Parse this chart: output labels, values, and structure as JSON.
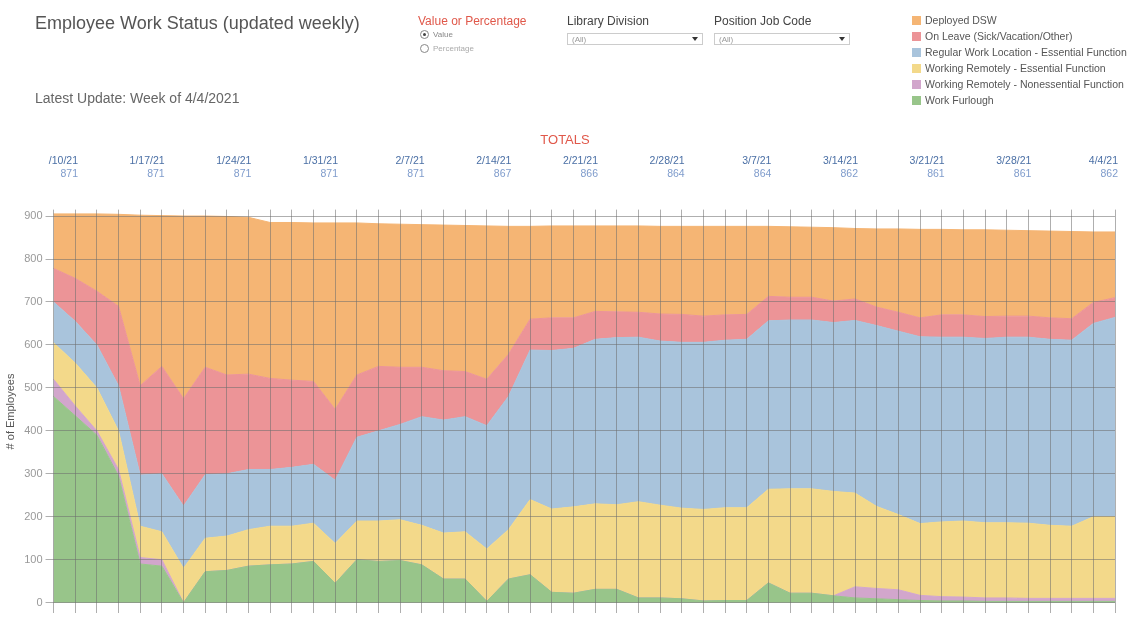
{
  "chart_data": {
    "type": "area",
    "title": "Employee Work Status (updated weekly)",
    "subtitle": "Latest Update: Week of 4/4/2021",
    "ylabel": "# of Employees",
    "stacked": true,
    "legend": "top right",
    "grid": true,
    "tick_labels": "y",
    "ylim": [
      -25,
      915
    ],
    "yticks": [
      0,
      100,
      200,
      300,
      400,
      500,
      600,
      700,
      800,
      900
    ],
    "annotations": [
      "Value or Percentage",
      "Value",
      "Percentage",
      "Library Division",
      "(All)",
      "Position Job Code",
      "(All)",
      "TOTALS",
      "/10/21",
      "871",
      "1/17/21",
      "871",
      "1/24/21",
      "871",
      "1/31/21",
      "871",
      "2/7/21",
      "871",
      "2/14/21",
      "867",
      "2/21/21",
      "866",
      "2/28/21",
      "864",
      "3/7/21",
      "864",
      "3/14/21",
      "862",
      "3/21/21",
      "861",
      "3/28/21",
      "861",
      "4/4/21",
      "862"
    ],
    "categories": [
      null,
      null,
      null,
      null,
      null,
      null,
      null,
      null,
      null,
      null,
      null,
      null,
      null,
      null,
      null,
      null,
      null,
      null,
      null,
      null,
      null,
      null,
      null,
      null,
      null,
      null,
      null,
      null,
      null,
      null,
      null,
      null,
      null,
      null,
      null,
      null,
      null,
      null,
      null,
      null,
      null,
      null,
      null,
      null,
      null,
      null,
      null,
      null,
      null,
      null
    ],
    "series": [
      {
        "name": "Work Furlough",
        "color": "#98c58a",
        "values": [
          480,
          435,
          390,
          295,
          90,
          85,
          0,
          72,
          75,
          85,
          88,
          90,
          96,
          45,
          100,
          96,
          98,
          88,
          55,
          55,
          3,
          55,
          65,
          24,
          22,
          31,
          31,
          11,
          11,
          9,
          4,
          5,
          5,
          46,
          22,
          22,
          16,
          11,
          9,
          7,
          5,
          4,
          4,
          3,
          3,
          3,
          3,
          3,
          3,
          3
        ]
      },
      {
        "name": "Working Remotely - Nonessential Function",
        "color": "#d2a6cc",
        "values": [
          40,
          23,
          10,
          15,
          15,
          15,
          0,
          0,
          0,
          0,
          0,
          0,
          0,
          0,
          0,
          0,
          0,
          0,
          0,
          0,
          0,
          0,
          0,
          0,
          0,
          0,
          0,
          0,
          0,
          0,
          0,
          0,
          0,
          0,
          0,
          0,
          0,
          26,
          24,
          23,
          12,
          10,
          9,
          8,
          8,
          7,
          7,
          7,
          7,
          7
        ]
      },
      {
        "name": "Working Remotely - Essential Function",
        "color": "#f3d98a",
        "values": [
          85,
          100,
          100,
          90,
          73,
          65,
          80,
          78,
          80,
          85,
          90,
          88,
          89,
          93,
          90,
          94,
          95,
          92,
          107,
          110,
          122,
          115,
          175,
          194,
          201,
          199,
          197,
          224,
          216,
          211,
          213,
          216,
          216,
          218,
          243,
          243,
          243,
          218,
          191,
          175,
          167,
          174,
          177,
          175,
          175,
          175,
          170,
          168,
          190,
          190
        ]
      },
      {
        "name": "Regular Work Location - Essential Function",
        "color": "#a9c4dc",
        "values": [
          95,
          97,
          100,
          105,
          119,
          135,
          145,
          148,
          145,
          140,
          132,
          137,
          137,
          147,
          195,
          210,
          222,
          253,
          263,
          268,
          287,
          310,
          348,
          369,
          369,
          383,
          389,
          383,
          382,
          386,
          389,
          390,
          392,
          392,
          393,
          393,
          393,
          402,
          421,
          427,
          435,
          430,
          428,
          429,
          432,
          433,
          433,
          433,
          450,
          464
        ]
      },
      {
        "name": "On Leave (Sick/Vacation/Other)",
        "color": "#ec9497",
        "values": [
          78,
          100,
          125,
          185,
          208,
          250,
          250,
          250,
          230,
          222,
          212,
          203,
          193,
          165,
          145,
          150,
          133,
          115,
          115,
          105,
          108,
          98,
          72,
          76,
          71,
          65,
          60,
          58,
          63,
          65,
          61,
          59,
          58,
          57,
          53,
          53,
          50,
          50,
          43,
          44,
          44,
          52,
          52,
          51,
          49,
          49,
          50,
          50,
          49,
          46
        ]
      },
      {
        "name": "Deployed DSW",
        "color": "#f5b574",
        "values": [
          127,
          150,
          180,
          214,
          397,
          351,
          425,
          352,
          369,
          365,
          363,
          367,
          369,
          434,
          354,
          332,
          333,
          332,
          339,
          340,
          357,
          298,
          216,
          214,
          214,
          199,
          200,
          201,
          204,
          205,
          209,
          206,
          205,
          163,
          164,
          163,
          171,
          164,
          182,
          194,
          206,
          199,
          198,
          202,
          200,
          199,
          202,
          203,
          164,
          153
        ]
      }
    ]
  }
}
